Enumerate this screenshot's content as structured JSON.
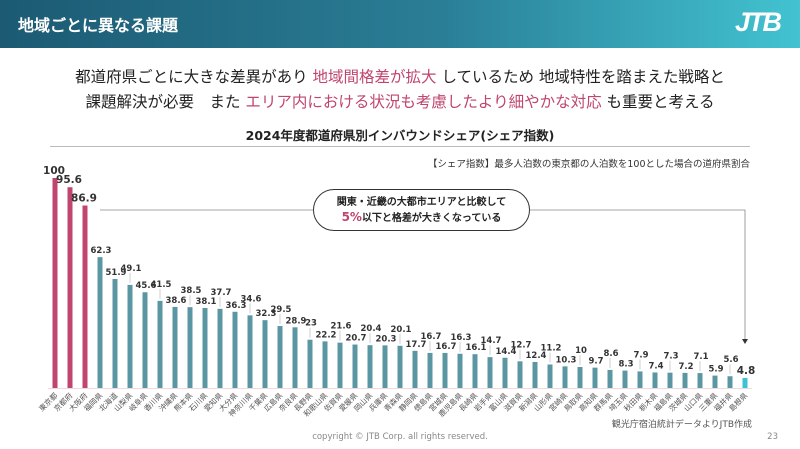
{
  "header": {
    "title": "地域ごとに異なる課題",
    "logo": "JTB"
  },
  "lead": {
    "line1": [
      {
        "text": "都道府県ごとに大きな差異があり ",
        "highlight": false
      },
      {
        "text": "地域間格差が拡大",
        "highlight": true
      },
      {
        "text": " しているため 地域特性を踏まえた戦略と",
        "highlight": false
      }
    ],
    "line2": [
      {
        "text": "課題解決が必要　また ",
        "highlight": false
      },
      {
        "text": "エリア内における状況も考慮したより細やかな対応",
        "highlight": true
      },
      {
        "text": " も重要と考える",
        "highlight": false
      }
    ]
  },
  "callout": {
    "line1": "関東・近畿の大都市エリアと比較して",
    "pct": "5%",
    "line2": "以下と格差が大きくなっている"
  },
  "note": "【シェア指数】最多人泊数の東京都の人泊数を100とした場合の道府県割合",
  "source": "観光庁宿泊統計データよりJTB作成",
  "footer": {
    "copyright": "copyright © JTB Corp. all rights reserved.",
    "page": "23"
  },
  "colors": {
    "highlight": "#c0456f",
    "metro_bar": "#c0456f",
    "bar": "#5b97a3",
    "last_bar": "#3fc0d4"
  },
  "chart_data": {
    "type": "bar",
    "title": "2024年度都道府県別インバウンドシェア(シェア指数)",
    "ylim": [
      0,
      100
    ],
    "grid": false,
    "categories": [
      "東京都",
      "京都府",
      "大阪府",
      "福岡県",
      "北海道",
      "山梨県",
      "岐阜県",
      "香川県",
      "沖縄県",
      "熊本県",
      "石川県",
      "愛知県",
      "大分県",
      "神奈川県",
      "千葉県",
      "広島県",
      "奈良県",
      "長野県",
      "和歌山県",
      "佐賀県",
      "愛媛県",
      "岡山県",
      "兵庫県",
      "青森県",
      "静岡県",
      "徳島県",
      "宮城県",
      "鹿児島県",
      "長崎県",
      "岩手県",
      "富山県",
      "滋賀県",
      "新潟県",
      "山形県",
      "宮崎県",
      "鳥取県",
      "高知県",
      "群馬県",
      "埼玉県",
      "秋田県",
      "栃木県",
      "福島県",
      "茨城県",
      "山口県",
      "三重県",
      "福井県",
      "島根県"
    ],
    "values": [
      100,
      95.6,
      86.9,
      62.3,
      51.9,
      49.1,
      45.6,
      41.5,
      38.6,
      38.5,
      38.1,
      37.7,
      36.3,
      34.6,
      32.3,
      29.5,
      28.9,
      23,
      22.2,
      21.6,
      20.7,
      20.4,
      20.3,
      20.1,
      17.7,
      16.7,
      16.7,
      16.3,
      16.1,
      14.7,
      14.4,
      12.7,
      12.4,
      11.2,
      10.3,
      10,
      9.7,
      8.6,
      8.3,
      7.9,
      7.4,
      7.3,
      7.2,
      7.1,
      5.9,
      5.6,
      4.8
    ]
  }
}
